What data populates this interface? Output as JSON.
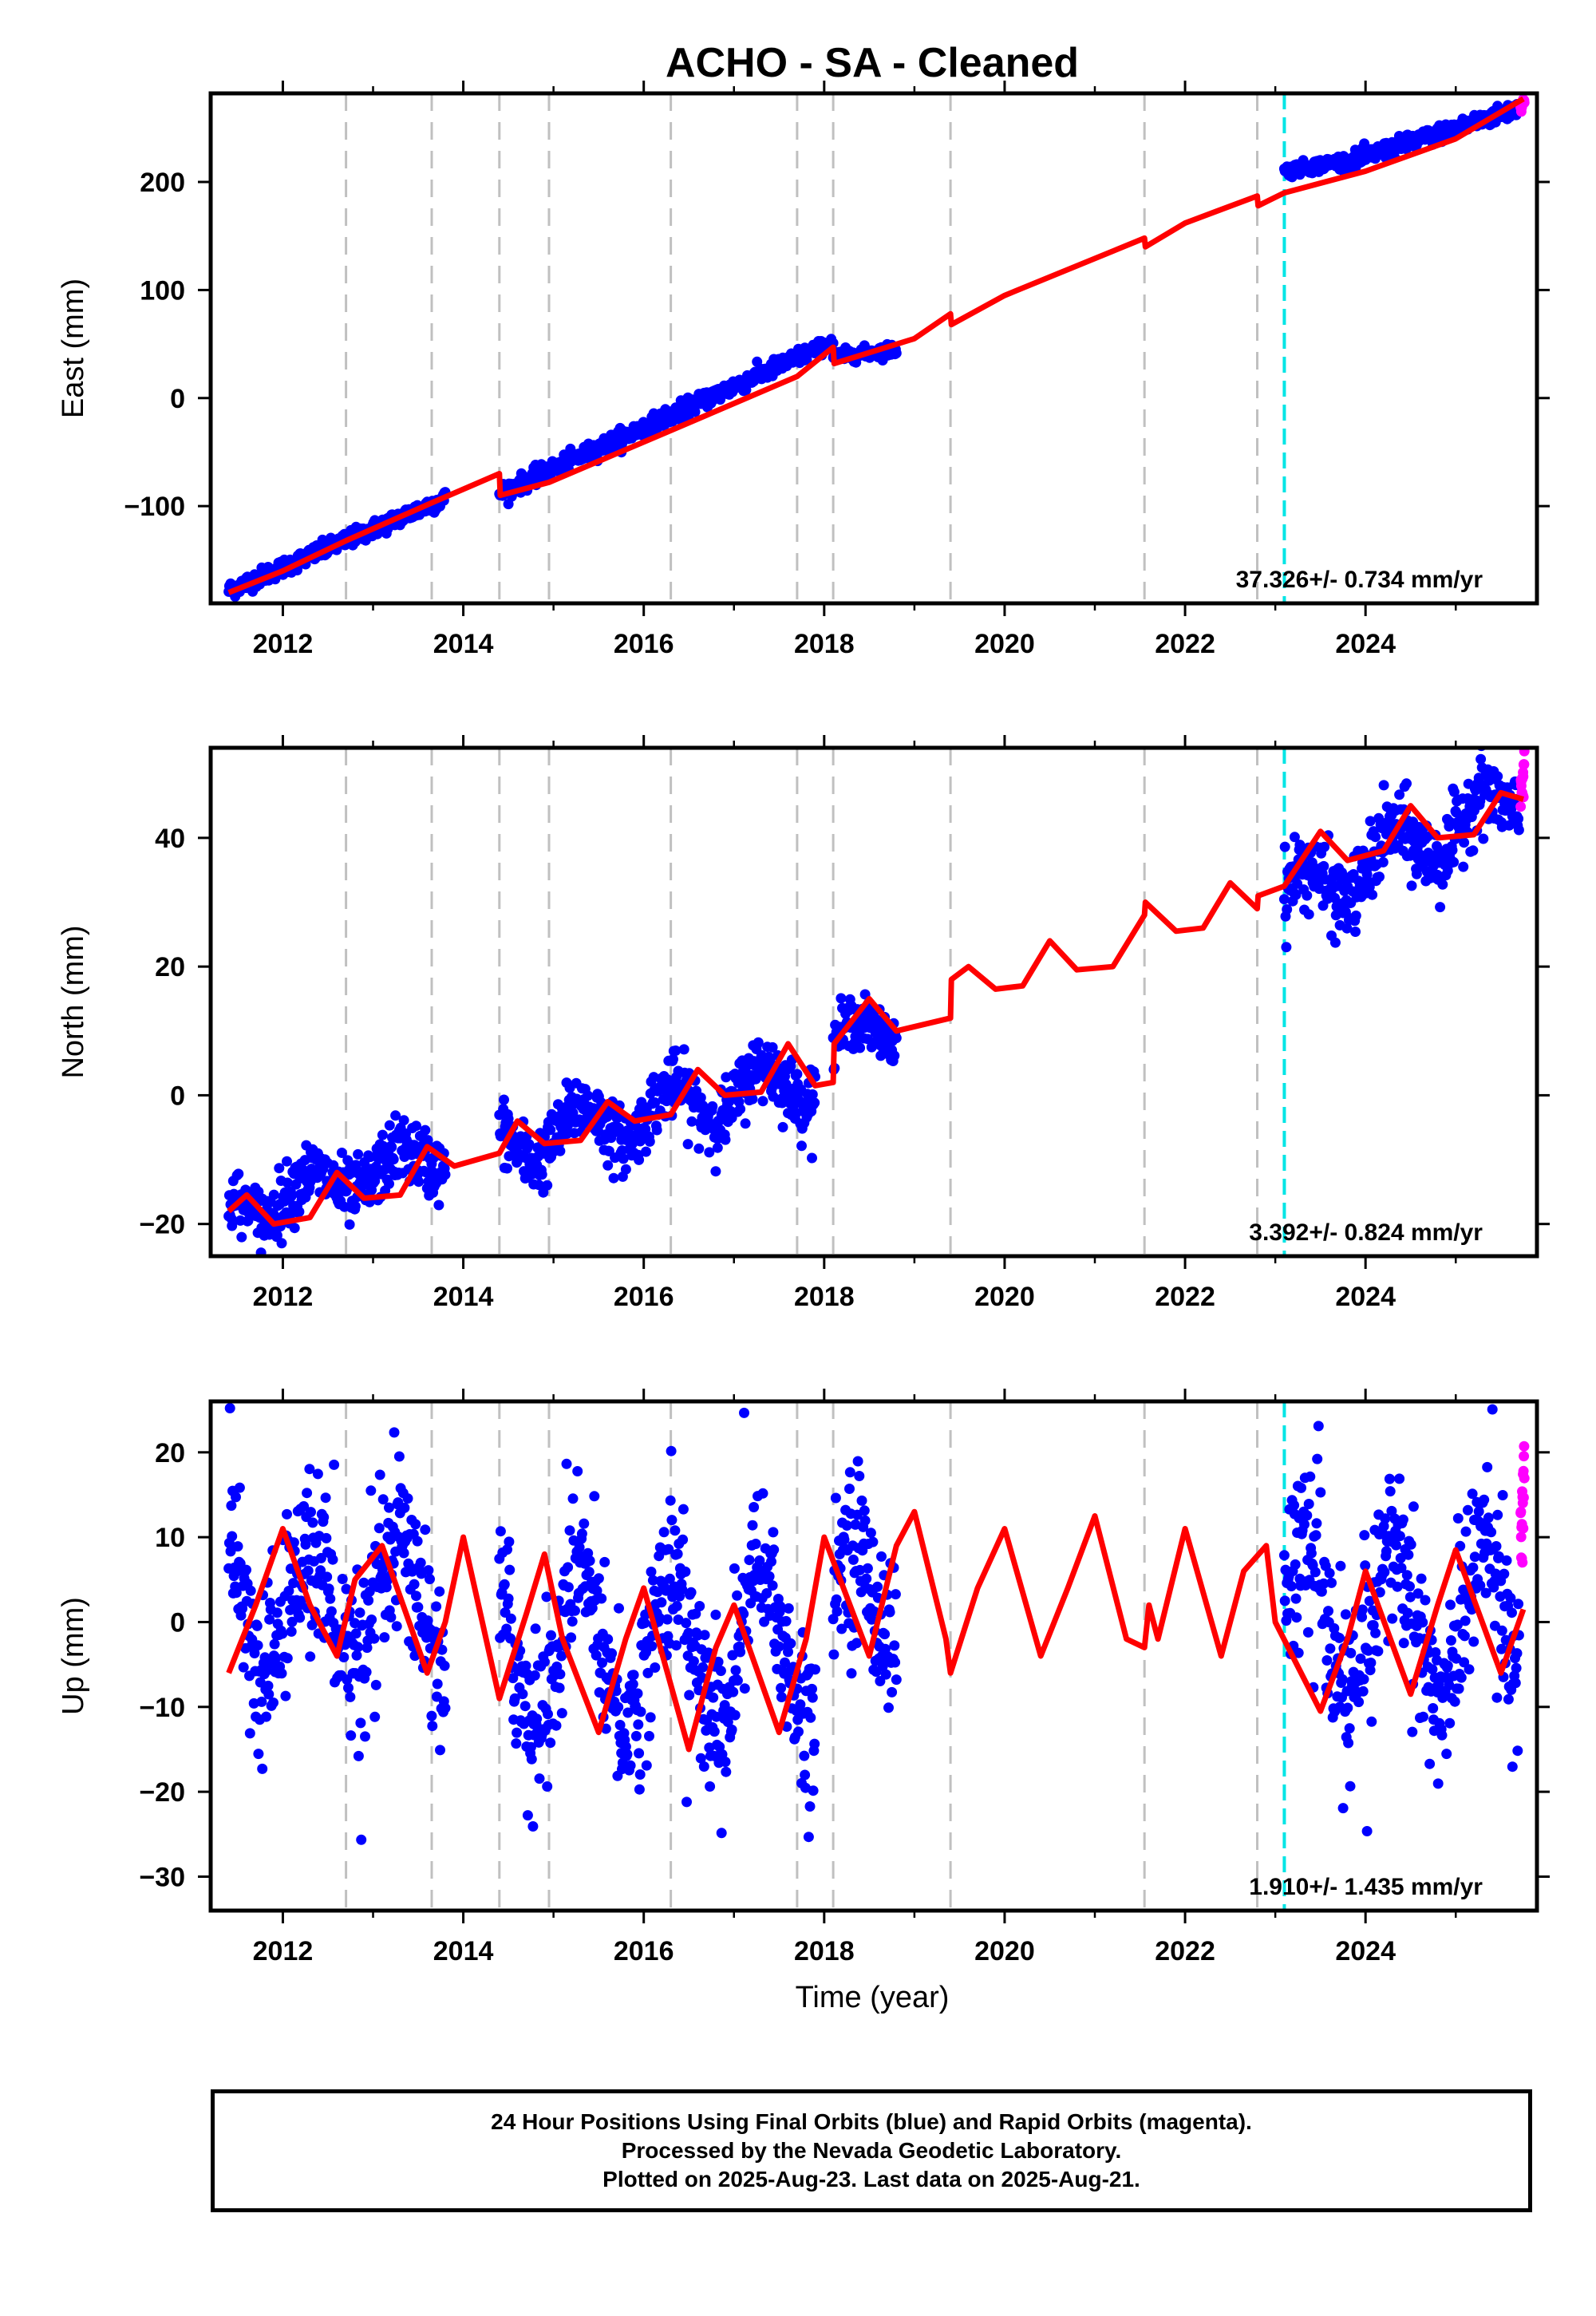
{
  "figure": {
    "title": "ACHO  - SA - Cleaned",
    "xlabel": "Time (year)"
  },
  "footer": {
    "line1": "24 Hour Positions Using Final Orbits (blue) and Rapid Orbits (magenta).",
    "line2": "Processed by the Nevada Geodetic Laboratory.",
    "line3": "Plotted on 2025-Aug-23. Last data on 2025-Aug-21."
  },
  "colors": {
    "final_orbits": "#0000ff",
    "rapid_orbits": "#ff00ff",
    "model": "#ff0000",
    "event_line": "#c0c0c0",
    "cutoff_line": "#00e5e5"
  },
  "chart_data": [
    {
      "type": "scatter",
      "panel": "east",
      "title": "ACHO  - SA - Cleaned",
      "xlabel": "",
      "ylabel": "East (mm)",
      "xlim": [
        2011.2,
        2025.9
      ],
      "ylim": [
        -190,
        282
      ],
      "x_ticks": [
        2012,
        2014,
        2016,
        2018,
        2020,
        2022,
        2024
      ],
      "y_ticks": [
        -100,
        0,
        100,
        200
      ],
      "grid": false,
      "rate_label": "37.326+/- 0.734 mm/yr",
      "event_lines": [
        2012.7,
        2013.65,
        2014.4,
        2014.95,
        2016.3,
        2017.7,
        2018.1,
        2019.4,
        2021.55,
        2022.8
      ],
      "cutoff_line": 2023.1,
      "model": {
        "x": [
          2011.4,
          2012.0,
          2012.7,
          2013.65,
          2014.4,
          2014.41,
          2014.95,
          2016.3,
          2017.7,
          2018.1,
          2018.11,
          2019.0,
          2019.4,
          2019.41,
          2020.0,
          2021.55,
          2021.56,
          2022.0,
          2022.8,
          2022.81,
          2023.1,
          2024.0,
          2025.0,
          2025.75
        ],
        "y": [
          -180,
          -160,
          -132,
          -97,
          -70,
          -90,
          -78,
          -30,
          20,
          47,
          32,
          55,
          78,
          68,
          95,
          148,
          140,
          162,
          187,
          178,
          190,
          210,
          240,
          277
        ]
      },
      "final_segments": [
        {
          "x": [
            2011.4,
            2013.8
          ],
          "y": [
            -178,
            -93
          ],
          "noise": 4
        },
        {
          "x": [
            2014.4,
            2017.9
          ],
          "y": [
            -88,
            45
          ],
          "noise": 4
        },
        {
          "x": [
            2017.9,
            2018.1
          ],
          "y": [
            45,
            52
          ],
          "noise": 3
        },
        {
          "x": [
            2018.1,
            2018.8
          ],
          "y": [
            38,
            45
          ],
          "noise": 3
        },
        {
          "x": [
            2023.1,
            2023.8
          ],
          "y": [
            210,
            220
          ],
          "noise": 3
        },
        {
          "x": [
            2023.8,
            2025.7
          ],
          "y": [
            218,
            268
          ],
          "noise": 4
        }
      ],
      "rapid_segments": [
        {
          "x": [
            2025.72,
            2025.76
          ],
          "y": [
            270,
            275
          ],
          "noise": 2
        }
      ]
    },
    {
      "type": "scatter",
      "panel": "north",
      "title": "",
      "xlabel": "",
      "ylabel": "North (mm)",
      "xlim": [
        2011.2,
        2025.9
      ],
      "ylim": [
        -25,
        54
      ],
      "x_ticks": [
        2012,
        2014,
        2016,
        2018,
        2020,
        2022,
        2024
      ],
      "y_ticks": [
        -20,
        0,
        20,
        40
      ],
      "grid": false,
      "rate_label": "3.392+/- 0.824 mm/yr",
      "event_lines": [
        2012.7,
        2013.65,
        2014.4,
        2014.95,
        2016.3,
        2017.7,
        2018.1,
        2019.4,
        2021.55,
        2022.8
      ],
      "cutoff_line": 2023.1,
      "model": {
        "x": [
          2011.4,
          2011.6,
          2011.9,
          2012.3,
          2012.6,
          2012.9,
          2013.3,
          2013.6,
          2013.9,
          2014.4,
          2014.6,
          2014.9,
          2015.3,
          2015.6,
          2015.9,
          2016.3,
          2016.6,
          2016.9,
          2017.3,
          2017.6,
          2017.9,
          2018.1,
          2018.11,
          2018.5,
          2018.8,
          2019.4,
          2019.41,
          2019.6,
          2019.9,
          2020.2,
          2020.5,
          2020.8,
          2021.2,
          2021.55,
          2021.56,
          2021.9,
          2022.2,
          2022.5,
          2022.8,
          2022.81,
          2023.1,
          2023.5,
          2023.8,
          2024.2,
          2024.5,
          2024.8,
          2025.2,
          2025.5,
          2025.75
        ],
        "y": [
          -18,
          -15.5,
          -20,
          -19,
          -12,
          -16,
          -15.5,
          -8,
          -11,
          -9,
          -4,
          -7.5,
          -7,
          -1,
          -4,
          -3,
          4,
          0,
          0.5,
          8,
          1.5,
          2,
          8,
          15,
          10,
          12,
          18,
          20,
          16.5,
          17,
          24,
          19.5,
          20,
          28,
          30,
          25.5,
          26,
          33,
          29,
          31,
          32.5,
          41,
          36.5,
          38,
          45,
          40,
          40.5,
          47,
          46
        ]
      },
      "final_segments": [
        {
          "x": [
            2011.4,
            2013.8
          ],
          "y": [
            -18,
            -9
          ],
          "noise": 2.5,
          "seasonal": 2.5
        },
        {
          "x": [
            2014.4,
            2017.9
          ],
          "y": [
            -8,
            3
          ],
          "noise": 2.5,
          "seasonal": 3.5
        },
        {
          "x": [
            2018.1,
            2018.8
          ],
          "y": [
            7,
            12
          ],
          "noise": 2,
          "seasonal": 3
        },
        {
          "x": [
            2023.1,
            2025.7
          ],
          "y": [
            30,
            46
          ],
          "noise": 3,
          "seasonal": 4
        }
      ],
      "rapid_segments": [
        {
          "x": [
            2025.72,
            2025.76
          ],
          "y": [
            46,
            52
          ],
          "noise": 2
        }
      ]
    },
    {
      "type": "scatter",
      "panel": "up",
      "title": "",
      "xlabel": "Time (year)",
      "ylabel": "Up (mm)",
      "xlim": [
        2011.2,
        2025.9
      ],
      "ylim": [
        -34,
        26
      ],
      "x_ticks": [
        2012,
        2014,
        2016,
        2018,
        2020,
        2022,
        2024
      ],
      "y_ticks": [
        -30,
        -20,
        -10,
        0,
        10,
        20
      ],
      "grid": false,
      "rate_label": "1.910+/- 1.435 mm/yr",
      "event_lines": [
        2012.7,
        2013.65,
        2014.4,
        2014.95,
        2016.3,
        2017.7,
        2018.1,
        2019.4,
        2021.55,
        2022.8
      ],
      "cutoff_line": 2023.1,
      "model": {
        "x": [
          2011.4,
          2011.7,
          2012.0,
          2012.3,
          2012.6,
          2012.8,
          2013.1,
          2013.4,
          2013.6,
          2013.8,
          2014.0,
          2014.4,
          2014.7,
          2014.9,
          2015.1,
          2015.5,
          2015.8,
          2016.0,
          2016.5,
          2016.8,
          2017.0,
          2017.5,
          2017.8,
          2018.0,
          2018.5,
          2018.8,
          2019.0,
          2019.35,
          2019.4,
          2019.7,
          2020.0,
          2020.4,
          2020.7,
          2021.0,
          2021.35,
          2021.55,
          2021.6,
          2021.7,
          2022.0,
          2022.4,
          2022.65,
          2022.9,
          2023.0,
          2023.5,
          2023.8,
          2024.0,
          2024.5,
          2024.8,
          2025.0,
          2025.5,
          2025.75
        ],
        "y": [
          -6,
          2,
          11,
          2,
          -4,
          5,
          9,
          0,
          -6,
          0,
          10,
          -9,
          1,
          8,
          -2,
          -13,
          -2,
          4,
          -15,
          -3,
          2,
          -13,
          -2,
          10,
          -4,
          9,
          13,
          -2,
          -6,
          4,
          11,
          -4,
          4,
          12.5,
          -2,
          -3,
          2,
          -2,
          11,
          -4,
          6,
          9,
          0,
          -10.5,
          -2,
          6,
          -8.5,
          2,
          8.5,
          -6,
          1.5
        ]
      },
      "final_segments": [
        {
          "x": [
            2011.4,
            2013.8
          ],
          "y": [
            2,
            2
          ],
          "noise": 5,
          "seasonal": 7
        },
        {
          "x": [
            2014.4,
            2017.9
          ],
          "y": [
            -3,
            -3
          ],
          "noise": 5,
          "seasonal": 9
        },
        {
          "x": [
            2018.1,
            2018.8
          ],
          "y": [
            3,
            3
          ],
          "noise": 5,
          "seasonal": 6
        },
        {
          "x": [
            2023.1,
            2025.7
          ],
          "y": [
            0,
            0
          ],
          "noise": 5,
          "seasonal": 9
        }
      ],
      "rapid_segments": [
        {
          "x": [
            2025.72,
            2025.76
          ],
          "y": [
            8,
            20
          ],
          "noise": 4
        }
      ]
    }
  ]
}
